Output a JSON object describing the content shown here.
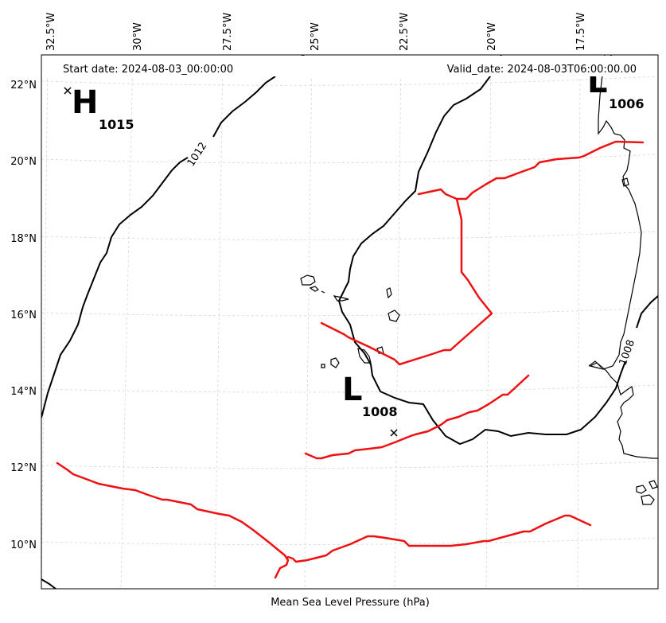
{
  "map": {
    "start_date": "Start date: 2024-08-03_00:00:00",
    "valid_date": "Valid_date: 2024-08-03T06:00:00.00",
    "xlabel": "Mean Sea Level Pressure (hPa)",
    "lon_ticks": [
      "32.5°W",
      "30°W",
      "27.5°W",
      "25°W",
      "22.5°W",
      "20°W",
      "17.5°W"
    ],
    "lat_ticks": [
      "22°N",
      "20°N",
      "18°N",
      "16°N",
      "14°N",
      "12°N",
      "10°N"
    ],
    "pressure_centers": [
      {
        "type": "H",
        "value": "1015"
      },
      {
        "type": "L",
        "value": "1008"
      },
      {
        "type": "L",
        "value": "1006"
      }
    ],
    "contour_labels": [
      "1012",
      "1008"
    ],
    "colors": {
      "isobar": "#000000",
      "trough": "#ee1111",
      "coastline": "#000000",
      "gridline": "#bbbbbb"
    }
  }
}
